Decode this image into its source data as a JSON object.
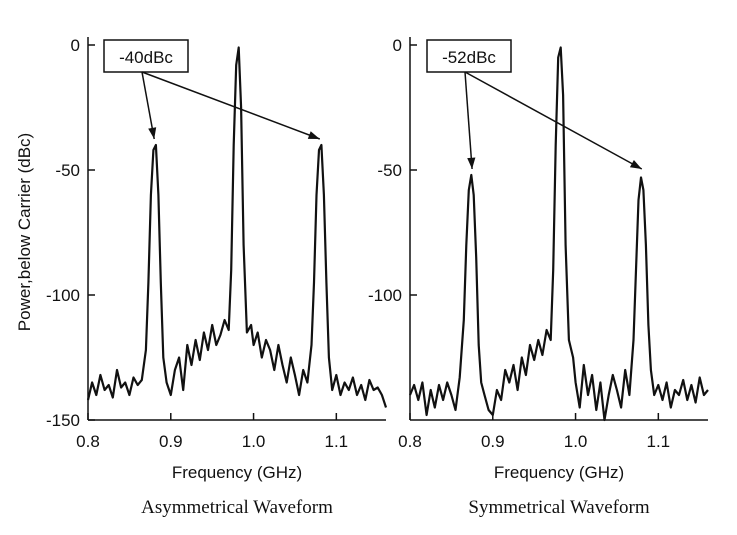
{
  "figure": {
    "ylabel": "Power,below Carrier (dBc)"
  },
  "chart_data": [
    {
      "type": "line",
      "caption": "Asymmetrical Waveform",
      "xlabel": "Frequency (GHz)",
      "ylabel": "Power,below Carrier (dBc)",
      "xlim": [
        0.8,
        1.16
      ],
      "ylim": [
        -150,
        0
      ],
      "xticks": [
        0.8,
        0.9,
        1.0,
        1.1
      ],
      "xtick_labels": [
        "0.8",
        "0.9",
        "1.0",
        "1.1"
      ],
      "yticks": [
        0,
        -50,
        -100,
        -150
      ],
      "ytick_labels": [
        "0",
        "-50",
        "-100",
        "-150"
      ],
      "grid": false,
      "annotation": {
        "text": "-40dBc",
        "level": -40,
        "targets": [
          0.88,
          1.08
        ]
      },
      "series": [
        {
          "x": [
            0.8,
            0.805,
            0.81,
            0.815,
            0.82,
            0.825,
            0.83,
            0.835,
            0.84,
            0.845,
            0.85,
            0.855,
            0.86,
            0.865,
            0.87,
            0.873,
            0.876,
            0.879,
            0.882,
            0.885,
            0.888,
            0.891,
            0.895,
            0.9,
            0.905,
            0.91,
            0.915,
            0.92,
            0.925,
            0.93,
            0.935,
            0.94,
            0.945,
            0.95,
            0.955,
            0.96,
            0.965,
            0.97,
            0.973,
            0.976,
            0.979,
            0.982,
            0.985,
            0.988,
            0.992,
            0.997,
            1.0,
            1.005,
            1.01,
            1.015,
            1.02,
            1.025,
            1.03,
            1.035,
            1.04,
            1.045,
            1.05,
            1.055,
            1.06,
            1.065,
            1.07,
            1.073,
            1.076,
            1.079,
            1.082,
            1.085,
            1.088,
            1.091,
            1.095,
            1.1,
            1.105,
            1.11,
            1.115,
            1.12,
            1.125,
            1.13,
            1.135,
            1.14,
            1.145,
            1.15,
            1.155,
            1.16
          ],
          "y": [
            -142,
            -135,
            -140,
            -132,
            -138,
            -136,
            -141,
            -130,
            -137,
            -135,
            -140,
            -133,
            -136,
            -134,
            -122,
            -95,
            -60,
            -42,
            -40,
            -60,
            -95,
            -125,
            -135,
            -140,
            -130,
            -125,
            -138,
            -120,
            -128,
            -118,
            -126,
            -115,
            -122,
            -112,
            -120,
            -116,
            -110,
            -114,
            -90,
            -40,
            -8,
            -1,
            -25,
            -80,
            -115,
            -112,
            -120,
            -115,
            -125,
            -118,
            -122,
            -130,
            -120,
            -128,
            -135,
            -125,
            -132,
            -140,
            -130,
            -135,
            -120,
            -95,
            -60,
            -42,
            -40,
            -60,
            -95,
            -125,
            -138,
            -132,
            -140,
            -135,
            -138,
            -133,
            -140,
            -136,
            -142,
            -134,
            -138,
            -137,
            -140,
            -145
          ]
        }
      ]
    },
    {
      "type": "line",
      "caption": "Symmetrical Waveform",
      "xlabel": "Frequency (GHz)",
      "ylabel": "",
      "xlim": [
        0.8,
        1.16
      ],
      "ylim": [
        -150,
        0
      ],
      "xticks": [
        0.8,
        0.9,
        1.0,
        1.1
      ],
      "xtick_labels": [
        "0.8",
        "0.9",
        "1.0",
        "1.1"
      ],
      "yticks": [
        0,
        -50,
        -100
      ],
      "ytick_labels": [
        "0",
        "-50",
        "-100"
      ],
      "grid": false,
      "annotation": {
        "text": "-52dBc",
        "level": -52,
        "targets": [
          0.875,
          1.08
        ]
      },
      "series": [
        {
          "x": [
            0.8,
            0.805,
            0.81,
            0.815,
            0.82,
            0.825,
            0.83,
            0.835,
            0.84,
            0.845,
            0.85,
            0.855,
            0.86,
            0.865,
            0.868,
            0.871,
            0.874,
            0.877,
            0.88,
            0.883,
            0.886,
            0.89,
            0.895,
            0.9,
            0.905,
            0.91,
            0.915,
            0.92,
            0.925,
            0.93,
            0.935,
            0.94,
            0.945,
            0.95,
            0.955,
            0.96,
            0.965,
            0.97,
            0.973,
            0.976,
            0.979,
            0.982,
            0.985,
            0.988,
            0.992,
            0.997,
            1.0,
            1.005,
            1.01,
            1.015,
            1.02,
            1.025,
            1.03,
            1.035,
            1.04,
            1.045,
            1.05,
            1.055,
            1.06,
            1.065,
            1.07,
            1.073,
            1.076,
            1.079,
            1.082,
            1.085,
            1.088,
            1.091,
            1.095,
            1.1,
            1.105,
            1.11,
            1.115,
            1.12,
            1.125,
            1.13,
            1.135,
            1.14,
            1.145,
            1.15,
            1.155,
            1.16
          ],
          "y": [
            -140,
            -136,
            -142,
            -135,
            -148,
            -138,
            -145,
            -136,
            -142,
            -135,
            -140,
            -146,
            -133,
            -110,
            -80,
            -58,
            -52,
            -60,
            -85,
            -120,
            -135,
            -140,
            -146,
            -148,
            -138,
            -142,
            -130,
            -135,
            -128,
            -138,
            -125,
            -132,
            -120,
            -126,
            -118,
            -124,
            -114,
            -118,
            -90,
            -40,
            -5,
            -1,
            -20,
            -80,
            -118,
            -125,
            -135,
            -145,
            -128,
            -140,
            -132,
            -146,
            -135,
            -150,
            -140,
            -132,
            -138,
            -145,
            -130,
            -140,
            -118,
            -90,
            -62,
            -53,
            -58,
            -80,
            -112,
            -130,
            -140,
            -136,
            -142,
            -135,
            -145,
            -138,
            -140,
            -134,
            -142,
            -136,
            -143,
            -133,
            -140,
            -138
          ]
        }
      ]
    }
  ]
}
